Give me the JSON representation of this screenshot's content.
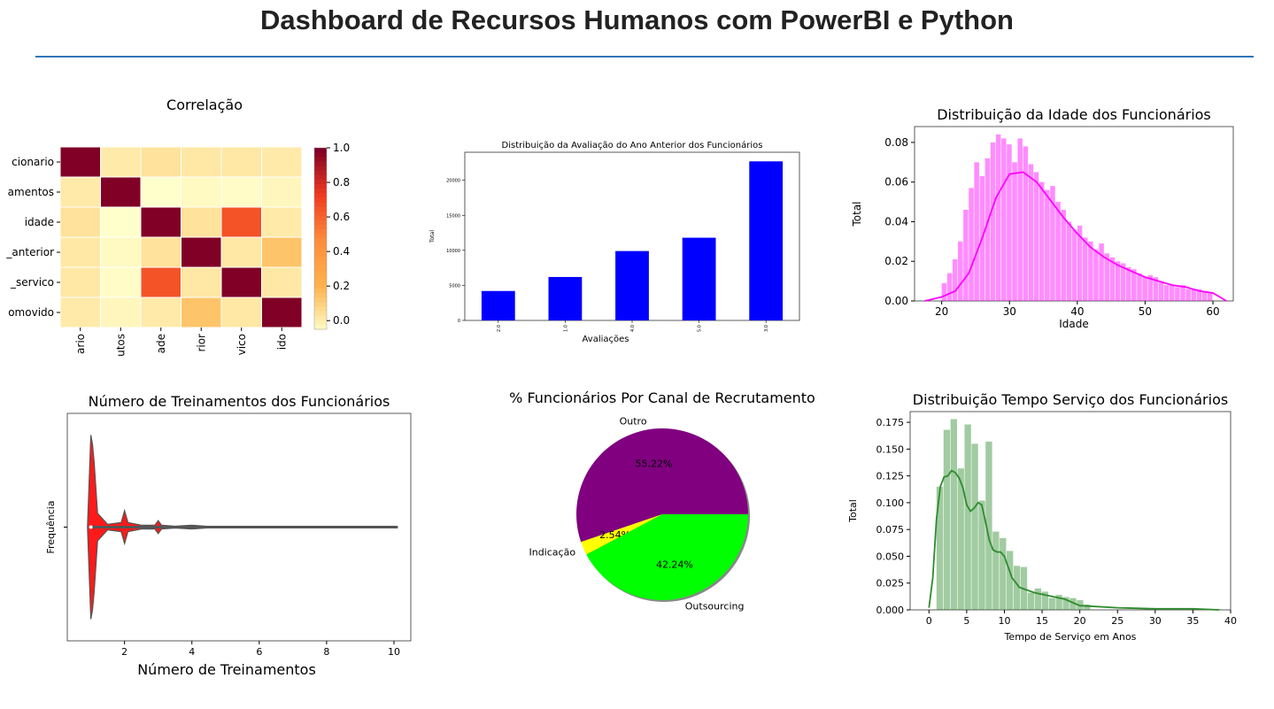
{
  "header": {
    "title": "Dashboard de Recursos Humanos com PowerBI e Python"
  },
  "chart_data": [
    {
      "type": "heatmap",
      "title": "Correlação",
      "row_labels": [
        "cionario",
        "amentos",
        "idade",
        "_anterior",
        "_servico",
        "omovido"
      ],
      "col_labels": [
        "ario",
        "utos",
        "ade",
        "rior",
        "vico",
        "ido"
      ],
      "matrix": [
        [
          1.0,
          0.02,
          0.05,
          0.03,
          0.03,
          0.02
        ],
        [
          0.02,
          1.0,
          -0.05,
          -0.03,
          -0.04,
          -0.02
        ],
        [
          0.05,
          -0.05,
          1.0,
          0.05,
          0.66,
          0.02
        ],
        [
          0.03,
          -0.03,
          0.05,
          1.0,
          0.03,
          0.15
        ],
        [
          0.03,
          -0.04,
          0.66,
          0.03,
          1.0,
          0.03
        ],
        [
          0.02,
          -0.02,
          0.02,
          0.15,
          0.03,
          1.0
        ]
      ],
      "colorbar_ticks": [
        "1.0",
        "0.8",
        "0.6",
        "0.4",
        "0.2",
        "0.0"
      ],
      "vmin": -0.05,
      "vmax": 1.0,
      "colormap": [
        "#ffffcc",
        "#feb24c",
        "#fd8d3c",
        "#f03b20",
        "#800026"
      ]
    },
    {
      "type": "bar",
      "title": "Distribuição da Avaliação do Ano Anterior dos Funcionários",
      "xlabel": "Avaliações",
      "ylabel": "Total",
      "categories": [
        "2.0",
        "1.0",
        "4.0",
        "5.0",
        "3.0"
      ],
      "values": [
        4200,
        6200,
        9900,
        11800,
        22700
      ],
      "yticks": [
        "0",
        "5000",
        "10000",
        "15000",
        "20000"
      ],
      "ylim": [
        0,
        24000
      ],
      "color": "#0000ff"
    },
    {
      "type": "bar",
      "subtype": "histogram-with-kde",
      "title": "Distribuição da Idade dos Funcionários",
      "ylabel": "Total",
      "xlabel": "Idade",
      "xticks": [
        "20",
        "30",
        "40",
        "50",
        "60"
      ],
      "yticks": [
        "0.00",
        "0.02",
        "0.04",
        "0.06",
        "0.08"
      ],
      "xlim": [
        16,
        63
      ],
      "ylim": [
        0,
        0.088
      ],
      "bin_start": 20,
      "bin_width": 0.8,
      "values": [
        0.009,
        0.014,
        0.021,
        0.03,
        0.046,
        0.057,
        0.07,
        0.063,
        0.072,
        0.08,
        0.084,
        0.082,
        0.079,
        0.07,
        0.082,
        0.078,
        0.069,
        0.065,
        0.06,
        0.056,
        0.058,
        0.05,
        0.046,
        0.04,
        0.036,
        0.038,
        0.032,
        0.03,
        0.026,
        0.029,
        0.024,
        0.022,
        0.02,
        0.019,
        0.017,
        0.016,
        0.014,
        0.012,
        0.013,
        0.012,
        0.01,
        0.008,
        0.008,
        0.007,
        0.008,
        0.006,
        0.006,
        0.006,
        0.005,
        0.004
      ],
      "kde_x": [
        17.5,
        20,
        22,
        24,
        26,
        28,
        30,
        32,
        34,
        36,
        38,
        40,
        42,
        44,
        46,
        48,
        50,
        52,
        54,
        56,
        58,
        60,
        62
      ],
      "kde_y": [
        0.0,
        0.002,
        0.005,
        0.014,
        0.032,
        0.052,
        0.064,
        0.065,
        0.06,
        0.051,
        0.042,
        0.034,
        0.027,
        0.022,
        0.018,
        0.015,
        0.012,
        0.01,
        0.008,
        0.007,
        0.005,
        0.004,
        0.0
      ],
      "color": "#ff00ff"
    },
    {
      "type": "violin",
      "title": "Número de Treinamentos dos Funcionários",
      "ylabel": "Frequência",
      "xlabel": "Número de Treinamentos",
      "xticks": [
        "2",
        "4",
        "6",
        "8",
        "10"
      ],
      "xlim": [
        0.3,
        10.5
      ],
      "profile_x": [
        0.9,
        1.0,
        1.05,
        1.1,
        1.2,
        1.5,
        1.9,
        2.0,
        2.1,
        2.5,
        2.9,
        3.0,
        3.1,
        3.5,
        4.0,
        4.5,
        10.1
      ],
      "profile_w": [
        0.0,
        1.0,
        0.9,
        0.7,
        0.15,
        0.03,
        0.05,
        0.18,
        0.05,
        0.02,
        0.02,
        0.07,
        0.02,
        0.01,
        0.02,
        0.008,
        0.008
      ],
      "color": "#ff1a1a"
    },
    {
      "type": "pie",
      "title": "% Funcionários Por Canal de Recrutamento",
      "labels": [
        "Outro",
        "Indicação",
        "Outsourcing"
      ],
      "values": [
        55.22,
        2.54,
        42.24
      ],
      "pct_labels": [
        "55.22%",
        "2.54%",
        "42.24%"
      ],
      "colors": [
        "#800080",
        "#ffff00",
        "#00ff00"
      ]
    },
    {
      "type": "bar",
      "subtype": "histogram-with-kde",
      "title": "Distribuição Tempo Serviço dos Funcionários",
      "ylabel": "Total",
      "xlabel": "Tempo de Serviço em Anos",
      "xticks": [
        "0",
        "5",
        "10",
        "15",
        "20",
        "25",
        "30",
        "35",
        "40"
      ],
      "yticks": [
        "0.000",
        "0.025",
        "0.050",
        "0.075",
        "0.100",
        "0.125",
        "0.150",
        "0.175"
      ],
      "xlim": [
        -2.5,
        40
      ],
      "ylim": [
        0,
        0.185
      ],
      "bin_start": 1,
      "bin_width": 0.93,
      "values": [
        0.115,
        0.168,
        0.178,
        0.132,
        0.173,
        0.155,
        0.102,
        0.157,
        0.073,
        0.067,
        0.055,
        0.041,
        0.04,
        0.016,
        0.02,
        0.017,
        0.011,
        0.014,
        0.012,
        0.011,
        0.009,
        0.005
      ],
      "kde_x": [
        0,
        0.5,
        1,
        1.5,
        2,
        2.5,
        3,
        3.5,
        4,
        4.5,
        5,
        5.5,
        6,
        6.5,
        7,
        7.5,
        8,
        8.5,
        9,
        9.5,
        10,
        11,
        12,
        14,
        16,
        18,
        20,
        25,
        30,
        35,
        38.5
      ],
      "kde_y": [
        0.002,
        0.03,
        0.085,
        0.115,
        0.124,
        0.125,
        0.13,
        0.128,
        0.123,
        0.114,
        0.098,
        0.092,
        0.095,
        0.1,
        0.098,
        0.082,
        0.065,
        0.056,
        0.054,
        0.054,
        0.05,
        0.03,
        0.021,
        0.016,
        0.013,
        0.01,
        0.004,
        0.002,
        0.001,
        0.001,
        0.0
      ],
      "color": "#2e8b2e"
    }
  ]
}
